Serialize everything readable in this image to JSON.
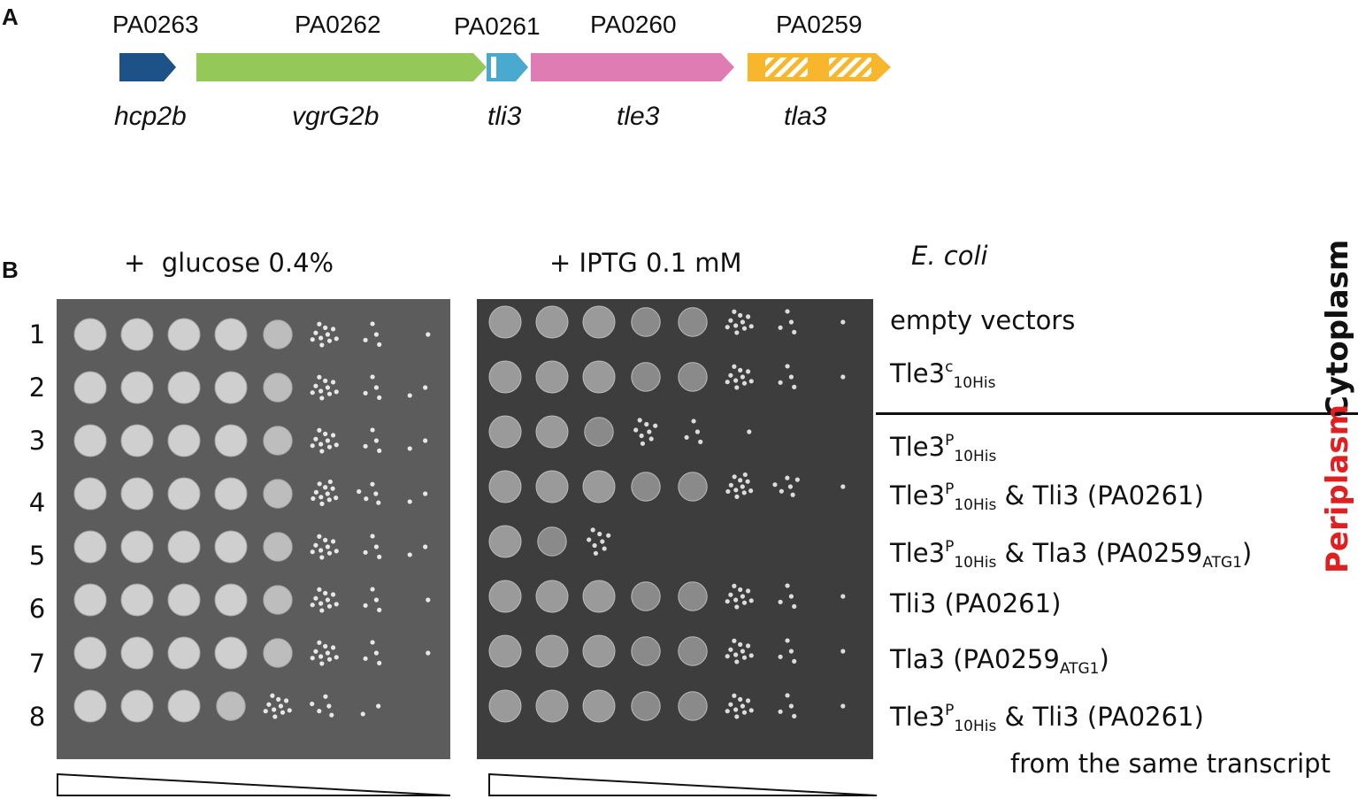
{
  "panel_a": {
    "letter": "A",
    "loci": [
      "PA0263",
      "PA0262",
      "PA0261",
      "PA0260",
      "PA0259"
    ],
    "genes": [
      "hcp2b",
      "vgrG2b",
      "tli3",
      "tle3",
      "tla3"
    ],
    "colors": {
      "hcp2b": "#1d5288",
      "vgrG2b": "#94c95a",
      "tli3": "#4aa9cf",
      "tle3": "#df7cb3",
      "tla3": "#f7b62b"
    }
  },
  "panel_b": {
    "letter": "B",
    "conditions": {
      "left": "+  glucose 0.4%",
      "right": "+ IPTG 0.1 mM"
    },
    "organism": "E. coli",
    "compartments": {
      "cytoplasm": "Cytoplasm",
      "periplasm": "Periplasm",
      "periplasm_color": "#e02020"
    },
    "rows": [
      {
        "num": "1",
        "label": {
          "text": "empty vectors"
        }
      },
      {
        "num": "2",
        "label": {
          "base": "Tle3",
          "sup": "c",
          "sub": "10His"
        }
      },
      {
        "num": "3",
        "label": {
          "base": "Tle3",
          "sup": "P",
          "sub": "10His"
        }
      },
      {
        "num": "4",
        "label": {
          "base": "Tle3",
          "sup": "P",
          "sub": "10His",
          "rest": " & Tli3 (PA0261)"
        }
      },
      {
        "num": "5",
        "label": {
          "base": "Tle3",
          "sup": "P",
          "sub": "10His",
          "rest": " & Tla3 (PA0259",
          "sub2": "ATG1",
          "end": ")"
        }
      },
      {
        "num": "6",
        "label": {
          "text": "Tli3 (PA0261)"
        }
      },
      {
        "num": "7",
        "label": {
          "pre": "Tla3 (PA0259",
          "sub2": "ATG1",
          "end": ")"
        }
      },
      {
        "num": "8",
        "label": {
          "base": "Tle3",
          "sup": "P",
          "sub": "10His",
          "rest": " & Tli3 (PA0261)"
        },
        "label2": "from the same transcript"
      }
    ],
    "spot_growth_left": [
      [
        1,
        1,
        1,
        1,
        0.6,
        0.35,
        0.15,
        0.05
      ],
      [
        1,
        1,
        1,
        1,
        0.6,
        0.35,
        0.15,
        0.08
      ],
      [
        1,
        1,
        1,
        1,
        0.6,
        0.35,
        0.15,
        0.08
      ],
      [
        1,
        1,
        1,
        1,
        0.6,
        0.4,
        0.18,
        0.08
      ],
      [
        1,
        1,
        1,
        1,
        0.6,
        0.35,
        0.15,
        0.08
      ],
      [
        1,
        1,
        1,
        1,
        0.6,
        0.35,
        0.15,
        0.05
      ],
      [
        1,
        1,
        1,
        1,
        0.6,
        0.35,
        0.15,
        0.05
      ],
      [
        1,
        1,
        1,
        0.55,
        0.35,
        0.18,
        0.08,
        0
      ]
    ],
    "spot_growth_right": [
      [
        1,
        1,
        1,
        0.9,
        0.6,
        0.35,
        0.15,
        0.05
      ],
      [
        1,
        1,
        1,
        0.9,
        0.6,
        0.35,
        0.15,
        0.05
      ],
      [
        1,
        1,
        0.65,
        0.3,
        0.15,
        0.05,
        0,
        0
      ],
      [
        1,
        1,
        1,
        0.9,
        0.7,
        0.4,
        0.2,
        0.05
      ],
      [
        1,
        0.65,
        0.3,
        0,
        0,
        0,
        0,
        0
      ],
      [
        1,
        1,
        1,
        0.9,
        0.6,
        0.35,
        0.15,
        0.05
      ],
      [
        1,
        1,
        1,
        0.9,
        0.6,
        0.35,
        0.15,
        0.05
      ],
      [
        1,
        1,
        1,
        0.9,
        0.6,
        0.35,
        0.15,
        0.05
      ]
    ]
  }
}
